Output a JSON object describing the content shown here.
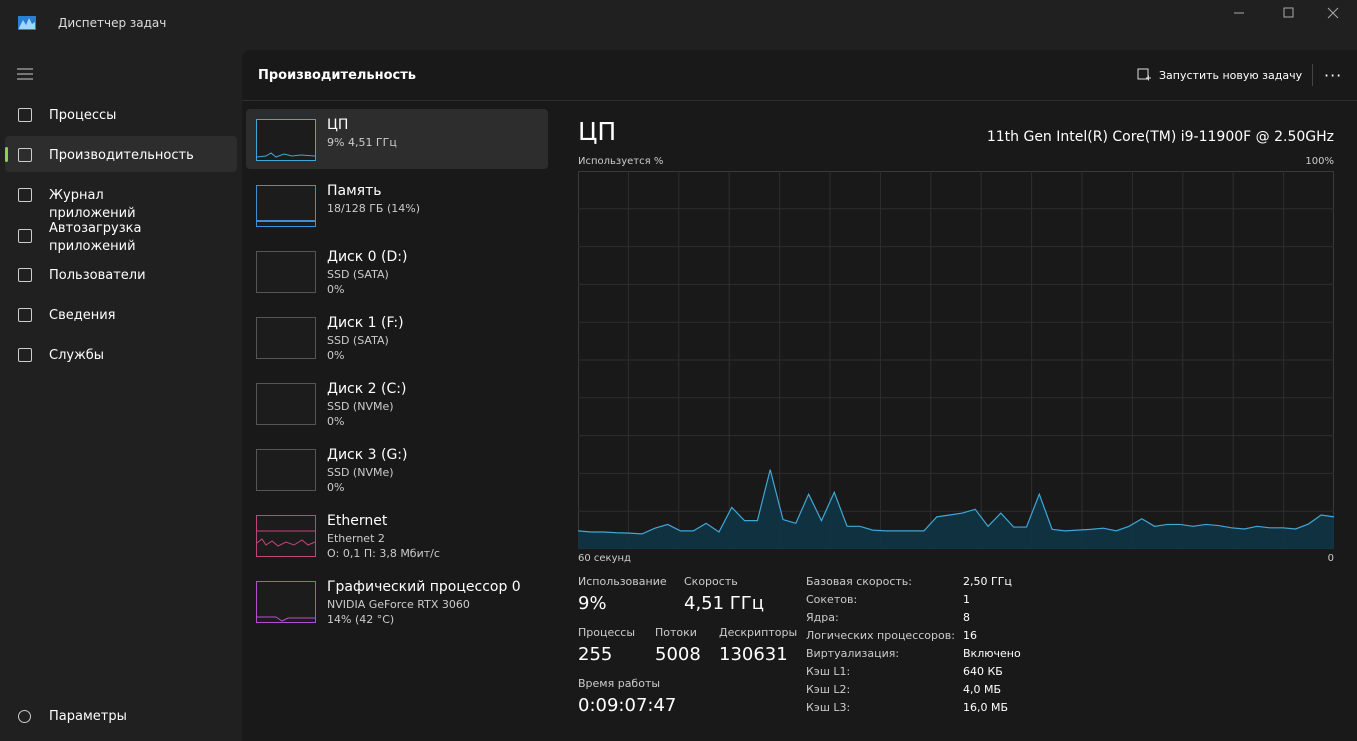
{
  "window": {
    "title": "Диспетчер задач"
  },
  "nav": {
    "items": [
      "Процессы",
      "Производительность",
      "Журнал приложений",
      "Автозагрузка приложений",
      "Пользователи",
      "Сведения",
      "Службы"
    ],
    "settings": "Параметры"
  },
  "header": {
    "title": "Производительность",
    "run_task": "Запустить новую задачу"
  },
  "devices": [
    {
      "name": "ЦП",
      "lines": [
        "9%  4,51 ГГц"
      ]
    },
    {
      "name": "Память",
      "lines": [
        "18/128 ГБ (14%)"
      ]
    },
    {
      "name": "Диск 0 (D:)",
      "lines": [
        "SSD (SATA)",
        "0%"
      ]
    },
    {
      "name": "Диск 1 (F:)",
      "lines": [
        "SSD (SATA)",
        "0%"
      ]
    },
    {
      "name": "Диск 2 (C:)",
      "lines": [
        "SSD (NVMe)",
        "0%"
      ]
    },
    {
      "name": "Диск 3 (G:)",
      "lines": [
        "SSD (NVMe)",
        "0%"
      ]
    },
    {
      "name": "Ethernet",
      "lines": [
        "Ethernet 2",
        "О: 0,1 П: 3,8 Мбит/с"
      ]
    },
    {
      "name": "Графический процессор 0",
      "lines": [
        "NVIDIA GeForce RTX 3060",
        "14% (42 °C)"
      ]
    }
  ],
  "cpu": {
    "title": "ЦП",
    "model": "11th Gen Intel(R) Core(TM) i9-11900F @ 2.50GHz",
    "graph": {
      "type": "line",
      "y_label": "Используется %",
      "y_max_label": "100%",
      "x_left_label": "60 секунд",
      "x_right_label": "0",
      "ylim": [
        0,
        100
      ],
      "color": "#3fa7d6",
      "values": [
        4.8,
        4.5,
        4.5,
        4.3,
        4.2,
        4.0,
        5.5,
        6.5,
        4.8,
        4.8,
        6.8,
        4.5,
        11,
        7.5,
        7.5,
        21,
        7.8,
        6.8,
        14.5,
        7.5,
        15,
        6,
        6,
        5,
        4.8,
        4.8,
        4.8,
        4.8,
        8.5,
        9,
        9.5,
        10.5,
        6,
        9.5,
        5.8,
        5.8,
        14.5,
        5.2,
        4.8,
        5,
        5.2,
        5.5,
        4.8,
        6,
        8,
        6,
        6.5,
        6.5,
        6,
        6.5,
        6.2,
        5.6,
        5.3,
        6,
        5.6,
        5.6,
        5.3,
        6.6,
        9,
        8.5
      ]
    },
    "stats": [
      {
        "label": "Использование",
        "value": "9%"
      },
      {
        "label": "Скорость",
        "value": "4,51 ГГц"
      },
      {
        "label": "Процессы",
        "value": "255"
      },
      {
        "label": "Потоки",
        "value": "5008"
      },
      {
        "label": "Дескрипторы",
        "value": "130631"
      },
      {
        "label": "Время работы",
        "value": "0:09:07:47"
      }
    ],
    "details": [
      [
        "Базовая скорость:",
        "2,50 ГГц"
      ],
      [
        "Сокетов:",
        "1"
      ],
      [
        "Ядра:",
        "8"
      ],
      [
        "Логических процессоров:",
        "16"
      ],
      [
        "Виртуализация:",
        "Включено"
      ],
      [
        "Кэш L1:",
        "640 КБ"
      ],
      [
        "Кэш L2:",
        "4,0 МБ"
      ],
      [
        "Кэш L3:",
        "16,0 МБ"
      ]
    ]
  }
}
